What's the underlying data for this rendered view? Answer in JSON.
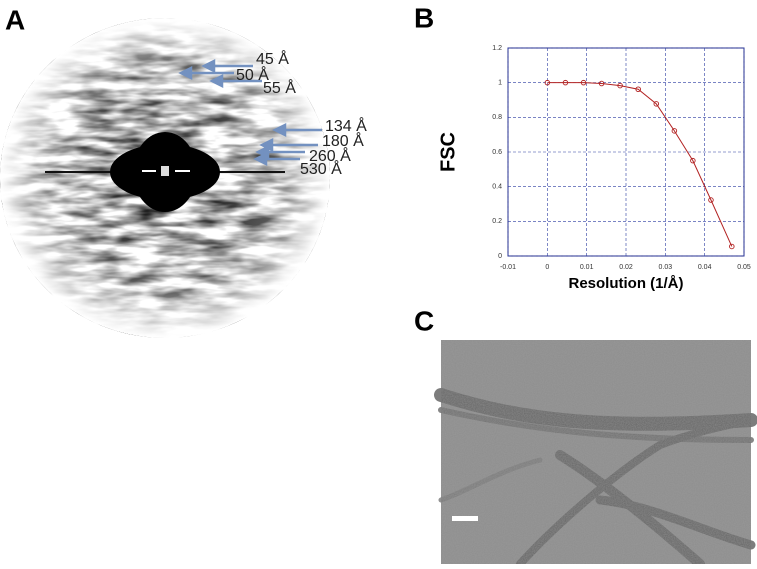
{
  "panels": {
    "a": {
      "label": "A",
      "annotations": [
        "45 Å",
        "50 Å",
        "55 Å",
        "134 Å",
        "180 Å",
        "260 Å",
        "530 Å"
      ]
    },
    "b": {
      "label": "B"
    },
    "c": {
      "label": "C"
    }
  },
  "chart_data": {
    "type": "line",
    "xlabel": "Resolution (1/Å)",
    "ylabel": "FSC",
    "x": [
      0,
      0.0046,
      0.0092,
      0.0138,
      0.0185,
      0.0231,
      0.0277,
      0.0323,
      0.037,
      0.0416,
      0.0469
    ],
    "series": [
      {
        "color": "#b22222",
        "values": [
          1,
          1,
          1,
          0.995,
          0.983,
          0.962,
          0.878,
          0.722,
          0.55,
          0.323,
          0.055
        ]
      }
    ],
    "xlim": [
      -0.01,
      0.05
    ],
    "xticks": [
      -0.01,
      0,
      0.01,
      0.02,
      0.03,
      0.04,
      0.05
    ],
    "ylim": [
      0,
      1.2
    ],
    "yticks": [
      0,
      0.2,
      0.4,
      0.6,
      0.8,
      1,
      1.2
    ],
    "grid": true
  }
}
